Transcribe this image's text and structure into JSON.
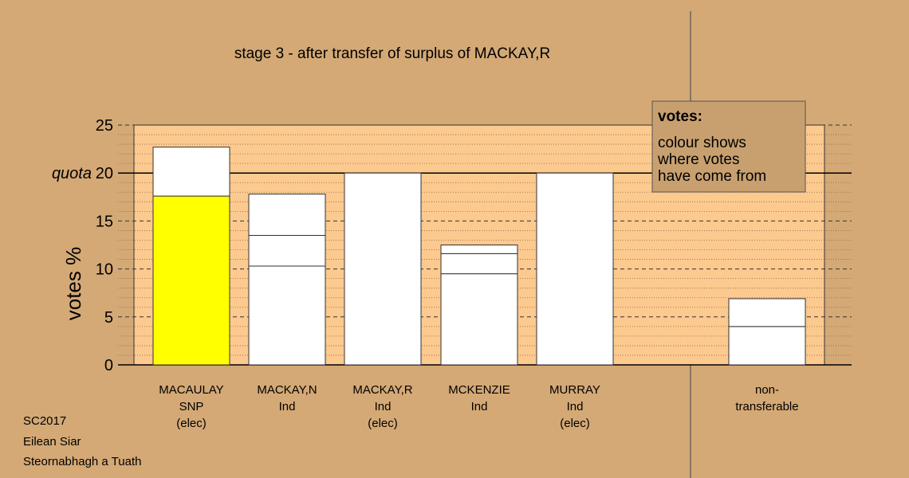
{
  "chart_data": {
    "type": "bar",
    "title": "stage 3 - after transfer of surplus of MACKAY,R",
    "ylabel": "votes %",
    "ylim": [
      0,
      25
    ],
    "yticks": [
      "0",
      "5",
      "10",
      "15",
      "20",
      "25"
    ],
    "quota": {
      "label": "quota",
      "value": 20
    },
    "colors": {
      "background": "#D4A976",
      "plot_area": "#FCC98F",
      "highlight": "#FFFF00",
      "bar": "#FFFFFF"
    },
    "categories": [
      {
        "lines": [
          "MACAULAY",
          "SNP",
          "(elec)"
        ],
        "segments": [
          {
            "value": 17.6,
            "color": "#FFFF00"
          },
          {
            "value": 5.1,
            "color": "#FFFFFF"
          }
        ]
      },
      {
        "lines": [
          "MACKAY,N",
          "Ind"
        ],
        "segments": [
          {
            "value": 10.3,
            "color": "#FFFFFF"
          },
          {
            "value": 3.2,
            "color": "#FFFFFF"
          },
          {
            "value": 4.3,
            "color": "#FFFFFF"
          }
        ]
      },
      {
        "lines": [
          "MACKAY,R",
          "Ind",
          "(elec)"
        ],
        "segments": [
          {
            "value": 20.0,
            "color": "#FFFFFF"
          }
        ]
      },
      {
        "lines": [
          "MCKENZIE",
          "Ind"
        ],
        "segments": [
          {
            "value": 9.5,
            "color": "#FFFFFF"
          },
          {
            "value": 2.1,
            "color": "#FFFFFF"
          },
          {
            "value": 0.9,
            "color": "#FFFFFF"
          }
        ]
      },
      {
        "lines": [
          "MURRAY",
          "Ind",
          "(elec)"
        ],
        "segments": [
          {
            "value": 20.0,
            "color": "#FFFFFF"
          }
        ]
      },
      {
        "lines": [
          "non-",
          "transferable"
        ],
        "segments": [
          {
            "value": 4.0,
            "color": "#FFFFFF"
          },
          {
            "value": 2.9,
            "color": "#FFFFFF"
          }
        ]
      }
    ],
    "legend": {
      "title": "votes:",
      "lines": [
        "colour shows",
        "where votes",
        "have come from"
      ],
      "placement": "top-right"
    }
  },
  "footer": {
    "line1": "SC2017",
    "line2": "Eilean Siar",
    "line3": "Steornabhagh a Tuath"
  }
}
